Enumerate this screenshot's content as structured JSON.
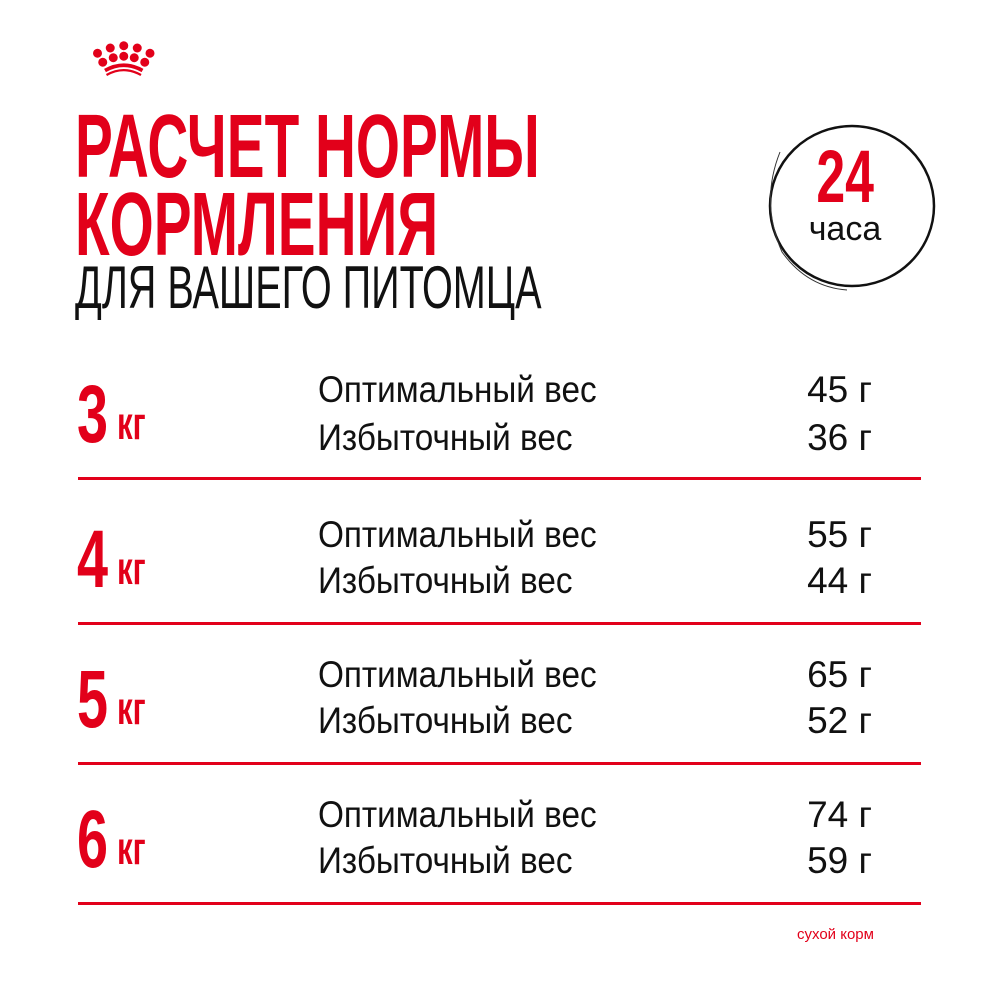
{
  "brand": {
    "logo": "royal-canin-crown",
    "accent": "#e2001a"
  },
  "header": {
    "title_line1": "РАСЧЕТ НОРМЫ",
    "title_line2": "КОРМЛЕНИЯ",
    "subtitle": "ДЛЯ ВАШЕГО ПИТОМЦА"
  },
  "badge": {
    "number": "24",
    "unit": "часа"
  },
  "rows": [
    {
      "weight": "3",
      "unit": "кг",
      "optimal_label": "Оптимальный вес",
      "optimal_value": "45 г",
      "over_label": "Избыточный вес",
      "over_value": "36 г"
    },
    {
      "weight": "4",
      "unit": "кг",
      "optimal_label": "Оптимальный вес",
      "optimal_value": "55 г",
      "over_label": "Избыточный вес",
      "over_value": "44 г"
    },
    {
      "weight": "5",
      "unit": "кг",
      "optimal_label": "Оптимальный вес",
      "optimal_value": "65 г",
      "over_label": "Избыточный вес",
      "over_value": "52 г"
    },
    {
      "weight": "6",
      "unit": "кг",
      "optimal_label": "Оптимальный вес",
      "optimal_value": "74 г",
      "over_label": "Избыточный вес",
      "over_value": "59 г"
    }
  ],
  "footer": {
    "note": "сухой корм"
  }
}
